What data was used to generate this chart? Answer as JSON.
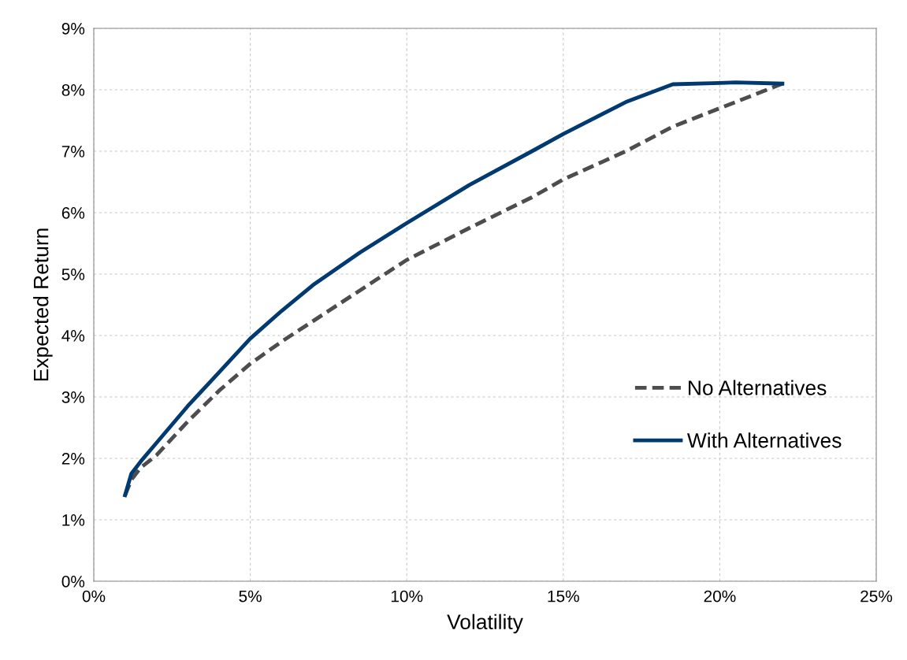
{
  "chart_data": {
    "type": "line",
    "xlabel": "Volatility",
    "ylabel": "Expected Return",
    "xlim": [
      0,
      25
    ],
    "ylim": [
      0,
      9
    ],
    "xticks": [
      {
        "value": 0,
        "label": "0%"
      },
      {
        "value": 5,
        "label": "5%"
      },
      {
        "value": 10,
        "label": "10%"
      },
      {
        "value": 15,
        "label": "15%"
      },
      {
        "value": 20,
        "label": "20%"
      },
      {
        "value": 25,
        "label": "25%"
      }
    ],
    "yticks": [
      {
        "value": 0,
        "label": "0%"
      },
      {
        "value": 1,
        "label": "1%"
      },
      {
        "value": 2,
        "label": "2%"
      },
      {
        "value": 3,
        "label": "3%"
      },
      {
        "value": 4,
        "label": "4%"
      },
      {
        "value": 5,
        "label": "5%"
      },
      {
        "value": 6,
        "label": "6%"
      },
      {
        "value": 7,
        "label": "7%"
      },
      {
        "value": 8,
        "label": "8%"
      },
      {
        "value": 9,
        "label": "9%"
      }
    ],
    "grid": true,
    "legend": "bottom right",
    "series": [
      {
        "name": "No Alternatives",
        "color": "#4d4d4f",
        "line_style": "dashed",
        "x": [
          1.0,
          1.2,
          1.5,
          2.0,
          3.0,
          4.0,
          5.0,
          6.0,
          7.5,
          9.0,
          10.0,
          12.0,
          14.0,
          15.0,
          17.0,
          18.5,
          20.0,
          22.0
        ],
        "values": [
          1.4,
          1.65,
          1.85,
          2.05,
          2.6,
          3.1,
          3.54,
          3.9,
          4.4,
          4.9,
          5.23,
          5.75,
          6.25,
          6.54,
          7.0,
          7.4,
          7.7,
          8.1
        ]
      },
      {
        "name": "With Alternatives",
        "color": "#003a70",
        "line_style": "solid",
        "x": [
          1.0,
          1.2,
          1.5,
          2.0,
          3.0,
          4.0,
          5.0,
          6.0,
          7.0,
          8.5,
          10.0,
          12.0,
          14.0,
          15.0,
          17.0,
          18.5,
          20.0,
          20.5,
          22.0
        ],
        "values": [
          1.4,
          1.75,
          1.95,
          2.25,
          2.85,
          3.4,
          3.95,
          4.4,
          4.82,
          5.35,
          5.83,
          6.45,
          7.0,
          7.28,
          7.8,
          8.09,
          8.11,
          8.12,
          8.1
        ]
      }
    ]
  }
}
